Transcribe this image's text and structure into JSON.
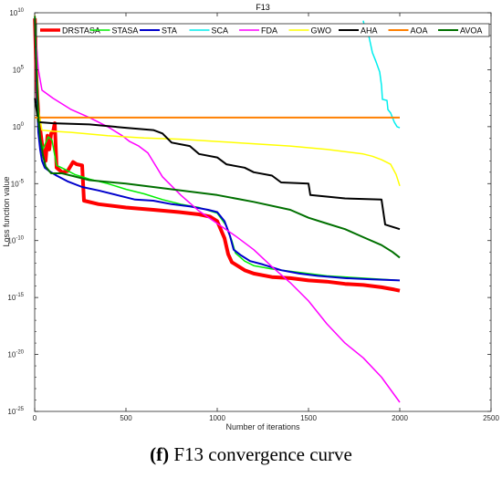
{
  "caption": {
    "letter": "(f)",
    "text": "F13 convergence curve"
  },
  "chart_data": {
    "type": "line",
    "title": "F13",
    "xlabel": "Number of iterations",
    "ylabel": "Loss function value",
    "xlim": [
      0,
      2500
    ],
    "ylim_log10": [
      -25,
      10
    ],
    "yscale": "log",
    "x_ticks": [
      "0",
      "500",
      "1000",
      "1500",
      "2000",
      "2500"
    ],
    "y_ticks": [
      {
        "base": "10",
        "exp": "10"
      },
      {
        "base": "10",
        "exp": "5"
      },
      {
        "base": "10",
        "exp": "0"
      },
      {
        "base": "10",
        "exp": "-5"
      },
      {
        "base": "10",
        "exp": "-10"
      },
      {
        "base": "10",
        "exp": "-15"
      },
      {
        "base": "10",
        "exp": "-20"
      },
      {
        "base": "10",
        "exp": "-25"
      }
    ],
    "grid": false,
    "legend_position": "top",
    "series": [
      {
        "name": "DRSTASA",
        "color": "#ff0000",
        "width": 4,
        "points": [
          [
            1,
            9.5
          ],
          [
            10,
            4
          ],
          [
            20,
            1
          ],
          [
            30,
            -0.2
          ],
          [
            40,
            -1.5
          ],
          [
            50,
            -2.5
          ],
          [
            60,
            -3
          ],
          [
            70,
            -0.8
          ],
          [
            80,
            -2
          ],
          [
            90,
            -0.6
          ],
          [
            100,
            -0.5
          ],
          [
            110,
            0.3
          ],
          [
            120,
            -3.6
          ],
          [
            150,
            -4
          ],
          [
            180,
            -3.9
          ],
          [
            210,
            -3.1
          ],
          [
            230,
            -3.3
          ],
          [
            260,
            -3.4
          ],
          [
            270,
            -6.5
          ],
          [
            350,
            -6.8
          ],
          [
            500,
            -7.1
          ],
          [
            650,
            -7.3
          ],
          [
            790,
            -7.5
          ],
          [
            900,
            -7.7
          ],
          [
            960,
            -7.9
          ],
          [
            1000,
            -8.3
          ],
          [
            1040,
            -9.8
          ],
          [
            1060,
            -11.2
          ],
          [
            1080,
            -11.9
          ],
          [
            1110,
            -12.2
          ],
          [
            1150,
            -12.6
          ],
          [
            1200,
            -12.9
          ],
          [
            1300,
            -13.2
          ],
          [
            1400,
            -13.3
          ],
          [
            1500,
            -13.5
          ],
          [
            1600,
            -13.6
          ],
          [
            1700,
            -13.8
          ],
          [
            1800,
            -13.9
          ],
          [
            1900,
            -14.1
          ],
          [
            1970,
            -14.3
          ],
          [
            2000,
            -14.4
          ]
        ]
      },
      {
        "name": "STASA",
        "color": "#00ee00",
        "width": 1.5,
        "points": [
          [
            1,
            9.5
          ],
          [
            10,
            5
          ],
          [
            20,
            0.3
          ],
          [
            30,
            -1
          ],
          [
            45,
            -2
          ],
          [
            55,
            -1.6
          ],
          [
            75,
            -0.9
          ],
          [
            95,
            -1.2
          ],
          [
            120,
            -3.4
          ],
          [
            160,
            -3.7
          ],
          [
            220,
            -4.2
          ],
          [
            300,
            -4.6
          ],
          [
            400,
            -5
          ],
          [
            500,
            -5.5
          ],
          [
            600,
            -5.9
          ],
          [
            700,
            -6.4
          ],
          [
            800,
            -6.8
          ],
          [
            900,
            -7.1
          ],
          [
            1000,
            -7.6
          ],
          [
            1050,
            -8.7
          ],
          [
            1080,
            -10
          ],
          [
            1100,
            -11.1
          ],
          [
            1150,
            -11.8
          ],
          [
            1200,
            -12.2
          ],
          [
            1300,
            -12.5
          ],
          [
            1400,
            -12.7
          ],
          [
            1600,
            -13.1
          ],
          [
            1800,
            -13.3
          ],
          [
            2000,
            -13.5
          ]
        ]
      },
      {
        "name": "STA",
        "color": "#0000cc",
        "width": 2,
        "points": [
          [
            1,
            9.5
          ],
          [
            10,
            4
          ],
          [
            20,
            -0.5
          ],
          [
            30,
            -2
          ],
          [
            40,
            -3
          ],
          [
            55,
            -3.6
          ],
          [
            80,
            -3.9
          ],
          [
            120,
            -4.3
          ],
          [
            180,
            -4.8
          ],
          [
            260,
            -5.3
          ],
          [
            350,
            -5.6
          ],
          [
            450,
            -6
          ],
          [
            550,
            -6.4
          ],
          [
            650,
            -6.5
          ],
          [
            750,
            -6.8
          ],
          [
            850,
            -7
          ],
          [
            950,
            -7.3
          ],
          [
            1000,
            -7.5
          ],
          [
            1040,
            -8.3
          ],
          [
            1070,
            -9.6
          ],
          [
            1090,
            -10.8
          ],
          [
            1130,
            -11.3
          ],
          [
            1180,
            -11.8
          ],
          [
            1250,
            -12.1
          ],
          [
            1350,
            -12.6
          ],
          [
            1450,
            -12.9
          ],
          [
            1550,
            -13.1
          ],
          [
            1700,
            -13.3
          ],
          [
            1850,
            -13.4
          ],
          [
            2000,
            -13.5
          ]
        ]
      },
      {
        "name": "SCA",
        "color": "#00eeee",
        "width": 1.5,
        "points": [
          [
            1800,
            9.3
          ],
          [
            1810,
            8.5
          ],
          [
            1830,
            8
          ],
          [
            1850,
            6.5
          ],
          [
            1870,
            5.7
          ],
          [
            1890,
            4.8
          ],
          [
            1900,
            3.6
          ],
          [
            1905,
            2.4
          ],
          [
            1930,
            2.3
          ],
          [
            1935,
            1.5
          ],
          [
            1950,
            1.2
          ],
          [
            1960,
            0.8
          ],
          [
            1970,
            0.4
          ],
          [
            1985,
            0
          ],
          [
            2000,
            -0.1
          ]
        ]
      },
      {
        "name": "FDA",
        "color": "#ff00ff",
        "width": 1.5,
        "points": [
          [
            1,
            9
          ],
          [
            20,
            5
          ],
          [
            40,
            3.2
          ],
          [
            100,
            2.5
          ],
          [
            200,
            1.5
          ],
          [
            300,
            0.8
          ],
          [
            400,
            0
          ],
          [
            480,
            -0.8
          ],
          [
            520,
            -1.3
          ],
          [
            570,
            -1.7
          ],
          [
            620,
            -2.3
          ],
          [
            700,
            -4.4
          ],
          [
            800,
            -6
          ],
          [
            900,
            -7.4
          ],
          [
            1000,
            -8.5
          ],
          [
            1100,
            -9.6
          ],
          [
            1200,
            -10.8
          ],
          [
            1300,
            -12.3
          ],
          [
            1400,
            -13.7
          ],
          [
            1500,
            -15.3
          ],
          [
            1600,
            -17.3
          ],
          [
            1700,
            -19
          ],
          [
            1800,
            -20.3
          ],
          [
            1900,
            -22
          ],
          [
            2000,
            -24.2
          ]
        ]
      },
      {
        "name": "GWO",
        "color": "#ffff00",
        "width": 1.5,
        "points": [
          [
            1,
            9.8
          ],
          [
            10,
            6
          ],
          [
            20,
            1.5
          ],
          [
            40,
            -0.3
          ],
          [
            100,
            -0.4
          ],
          [
            200,
            -0.5
          ],
          [
            400,
            -0.8
          ],
          [
            600,
            -1
          ],
          [
            800,
            -1.1
          ],
          [
            1000,
            -1.3
          ],
          [
            1200,
            -1.5
          ],
          [
            1400,
            -1.7
          ],
          [
            1600,
            -2
          ],
          [
            1800,
            -2.4
          ],
          [
            1850,
            -2.6
          ],
          [
            1900,
            -2.9
          ],
          [
            1950,
            -3.3
          ],
          [
            1980,
            -4.2
          ],
          [
            2000,
            -5.2
          ]
        ]
      },
      {
        "name": "AHA",
        "color": "#000000",
        "width": 2,
        "points": [
          [
            1,
            2.5
          ],
          [
            20,
            0.4
          ],
          [
            100,
            0.3
          ],
          [
            300,
            0.2
          ],
          [
            500,
            -0.1
          ],
          [
            650,
            -0.3
          ],
          [
            700,
            -0.6
          ],
          [
            750,
            -1.4
          ],
          [
            850,
            -1.7
          ],
          [
            900,
            -2.4
          ],
          [
            1000,
            -2.7
          ],
          [
            1050,
            -3.3
          ],
          [
            1150,
            -3.6
          ],
          [
            1200,
            -4
          ],
          [
            1300,
            -4.3
          ],
          [
            1350,
            -4.9
          ],
          [
            1500,
            -5
          ],
          [
            1510,
            -6
          ],
          [
            1700,
            -6.3
          ],
          [
            1900,
            -6.4
          ],
          [
            1920,
            -8.6
          ],
          [
            2000,
            -9
          ]
        ]
      },
      {
        "name": "AOA",
        "color": "#ff8000",
        "width": 2,
        "points": [
          [
            1,
            0.8
          ],
          [
            2000,
            0.8
          ]
        ]
      },
      {
        "name": "AVOA",
        "color": "#007000",
        "width": 2,
        "points": [
          [
            1,
            9.7
          ],
          [
            10,
            5
          ],
          [
            20,
            1
          ],
          [
            30,
            -1
          ],
          [
            45,
            -2.5
          ],
          [
            60,
            -3.5
          ],
          [
            90,
            -4.1
          ],
          [
            150,
            -4.1
          ],
          [
            300,
            -4.7
          ],
          [
            500,
            -5
          ],
          [
            600,
            -5.2
          ],
          [
            800,
            -5.6
          ],
          [
            1000,
            -6
          ],
          [
            1200,
            -6.6
          ],
          [
            1400,
            -7.3
          ],
          [
            1500,
            -8
          ],
          [
            1600,
            -8.5
          ],
          [
            1700,
            -9
          ],
          [
            1800,
            -9.7
          ],
          [
            1900,
            -10.4
          ],
          [
            1960,
            -11
          ],
          [
            2000,
            -11.5
          ]
        ]
      }
    ]
  }
}
